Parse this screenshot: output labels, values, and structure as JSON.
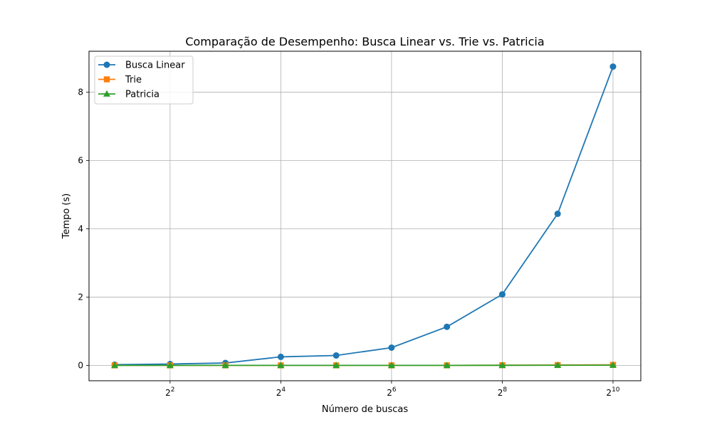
{
  "chart_data": {
    "type": "line",
    "title": "Comparação de Desempenho: Busca Linear vs. Trie vs. Patricia",
    "xlabel": "Número de buscas",
    "ylabel": "Tempo (s)",
    "x_scale": "log2",
    "x": [
      2,
      4,
      8,
      16,
      32,
      64,
      128,
      256,
      512,
      1024
    ],
    "x_ticks": [
      {
        "value": 4,
        "base": "2",
        "exp": "2"
      },
      {
        "value": 16,
        "base": "2",
        "exp": "4"
      },
      {
        "value": 64,
        "base": "2",
        "exp": "6"
      },
      {
        "value": 256,
        "base": "2",
        "exp": "8"
      },
      {
        "value": 1024,
        "base": "2",
        "exp": "10"
      }
    ],
    "y_ticks": [
      "0",
      "2",
      "4",
      "6",
      "8"
    ],
    "y_tick_values": [
      0,
      2,
      4,
      6,
      8
    ],
    "xlim": [
      1.45,
      1450
    ],
    "ylim": [
      -0.45,
      9.2
    ],
    "grid": true,
    "legend_position": "top-left",
    "series": [
      {
        "name": "Busca Linear",
        "color": "#1f77b4",
        "marker": "circle",
        "values": [
          0.02,
          0.04,
          0.07,
          0.25,
          0.29,
          0.52,
          1.13,
          2.08,
          4.44,
          8.75
        ]
      },
      {
        "name": "Trie",
        "color": "#ff7f0e",
        "marker": "square",
        "values": [
          0.0,
          0.0,
          0.0,
          0.0,
          0.0,
          0.0,
          0.0,
          0.005,
          0.01,
          0.015
        ]
      },
      {
        "name": "Patricia",
        "color": "#2ca02c",
        "marker": "triangle",
        "values": [
          0.0,
          0.0,
          0.0,
          0.0,
          0.0,
          0.0,
          0.0,
          0.002,
          0.004,
          0.006
        ]
      }
    ]
  }
}
